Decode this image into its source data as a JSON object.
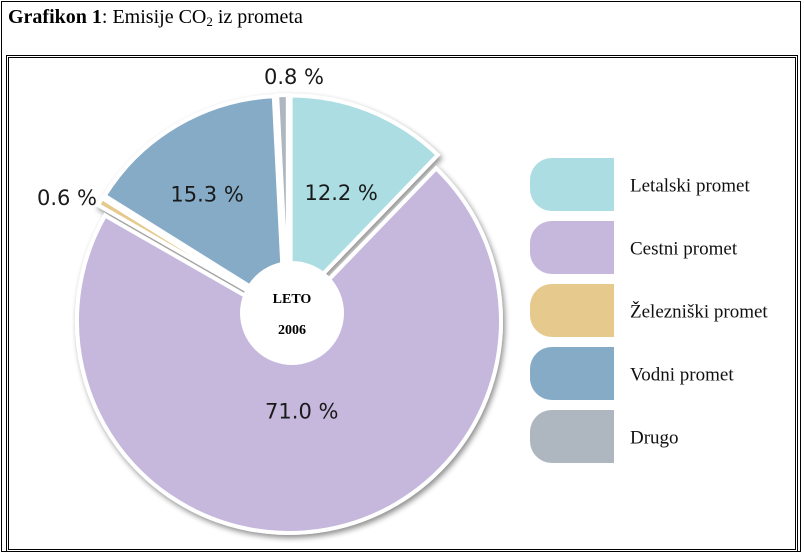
{
  "figure": {
    "title_bold": "Grafikon 1",
    "title_rest": ": Emisije CO",
    "title_sub": "2",
    "title_end": " iz prometa"
  },
  "chart_data": {
    "type": "pie",
    "center_label_line1": "LETO",
    "center_label_line2": "2006",
    "slices": [
      {
        "name": "Letalski promet",
        "value": 12.2,
        "label": "12.2 %",
        "color": "#acdde3"
      },
      {
        "name": "Cestni promet",
        "value": 71.0,
        "label": "71.0 %",
        "color": "#c5b8dc"
      },
      {
        "name": "Železniški promet",
        "value": 0.6,
        "label": "0.6 %",
        "color": "#e6c98d"
      },
      {
        "name": "Vodni promet",
        "value": 15.3,
        "label": "15.3 %",
        "color": "#86abc6"
      },
      {
        "name": "Drugo",
        "value": 0.8,
        "label": "0.8 %",
        "color": "#aeb6bf"
      }
    ],
    "legend_position": "right"
  }
}
